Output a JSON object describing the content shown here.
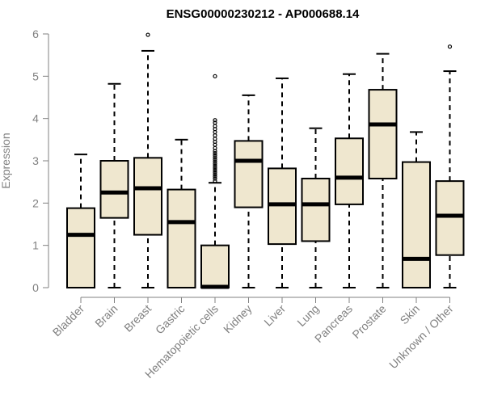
{
  "chart_data": {
    "type": "box",
    "title": "ENSG00000230212 - AP000688.14",
    "ylabel": "Expression",
    "xlabel": "",
    "ylim": [
      0,
      6
    ],
    "yticks": [
      0,
      1,
      2,
      3,
      4,
      5,
      6
    ],
    "categories": [
      "Bladder",
      "Brain",
      "Breast",
      "Gastric",
      "Hematopoietic cells",
      "Kidney",
      "Liver",
      "Lung",
      "Pancreas",
      "Prostate",
      "Skin",
      "Unknown / Other"
    ],
    "boxes": [
      {
        "category": "Bladder",
        "min": 0,
        "q1": 0,
        "median": 1.25,
        "q3": 1.88,
        "max": 3.15,
        "outliers": []
      },
      {
        "category": "Brain",
        "min": 0,
        "q1": 1.65,
        "median": 2.25,
        "q3": 3.0,
        "max": 4.82,
        "outliers": []
      },
      {
        "category": "Breast",
        "min": 0,
        "q1": 1.25,
        "median": 2.35,
        "q3": 3.07,
        "max": 5.6,
        "outliers": [
          5.98
        ]
      },
      {
        "category": "Gastric",
        "min": 0,
        "q1": 0,
        "median": 1.55,
        "q3": 2.32,
        "max": 3.5,
        "outliers": []
      },
      {
        "category": "Hematopoietic cells",
        "min": 0,
        "q1": 0,
        "median": 0.02,
        "q3": 1.0,
        "max": 2.48,
        "outliers": [
          2.52,
          2.58,
          2.63,
          2.68,
          2.73,
          2.78,
          2.83,
          2.88,
          2.93,
          2.98,
          3.03,
          3.08,
          3.13,
          3.18,
          3.23,
          3.3,
          3.38,
          3.45,
          3.52,
          3.6,
          3.68,
          3.75,
          3.82,
          3.9,
          3.96,
          5.0
        ]
      },
      {
        "category": "Kidney",
        "min": 0,
        "q1": 1.9,
        "median": 3.0,
        "q3": 3.47,
        "max": 4.55,
        "outliers": []
      },
      {
        "category": "Liver",
        "min": 0,
        "q1": 1.03,
        "median": 1.97,
        "q3": 2.82,
        "max": 4.95,
        "outliers": []
      },
      {
        "category": "Lung",
        "min": 0,
        "q1": 1.1,
        "median": 1.97,
        "q3": 2.58,
        "max": 3.77,
        "outliers": []
      },
      {
        "category": "Pancreas",
        "min": 0,
        "q1": 1.97,
        "median": 2.6,
        "q3": 3.53,
        "max": 5.05,
        "outliers": []
      },
      {
        "category": "Prostate",
        "min": 0,
        "q1": 2.58,
        "median": 3.86,
        "q3": 4.68,
        "max": 5.53,
        "outliers": []
      },
      {
        "category": "Skin",
        "min": 0,
        "q1": 0,
        "median": 0.68,
        "q3": 2.97,
        "max": 3.68,
        "outliers": []
      },
      {
        "category": "Unknown / Other",
        "min": 0,
        "q1": 0.77,
        "median": 1.7,
        "q3": 2.52,
        "max": 5.12,
        "outliers": [
          5.7
        ]
      }
    ],
    "grid": false,
    "legend": "none",
    "colors": {
      "box_fill": "#efe7cf",
      "box_stroke": "#000000",
      "axis": "#808080",
      "text": "#808080"
    }
  }
}
